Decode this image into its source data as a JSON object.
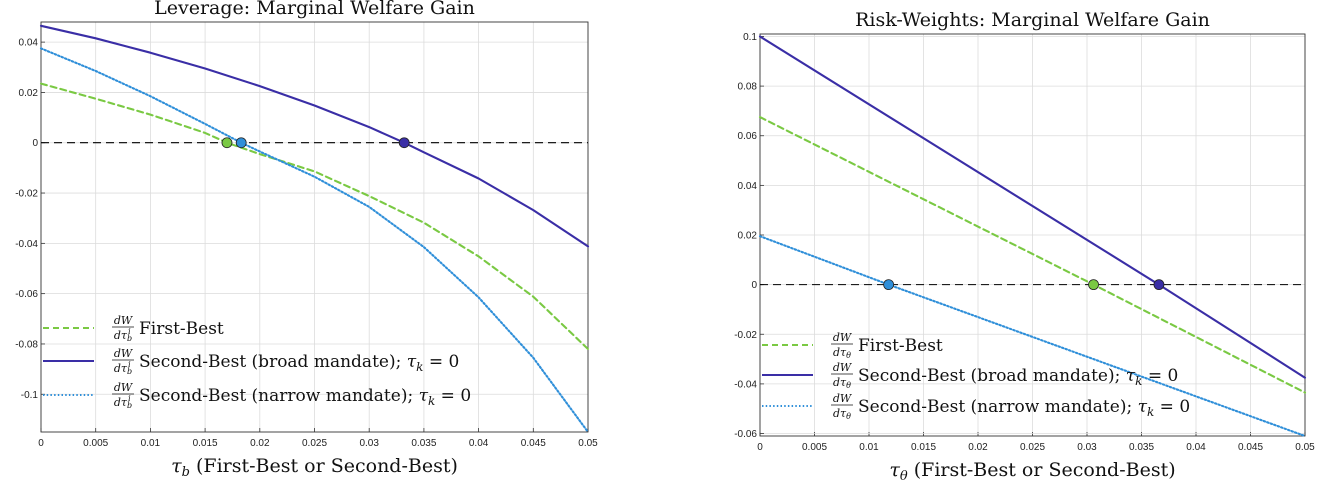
{
  "chart_data": [
    {
      "type": "line",
      "title": "Leverage: Marginal Welfare Gain",
      "xlabel_symbol": "τ",
      "xlabel_sub": "b",
      "xlabel_rest": " (First-Best or Second-Best)",
      "xlim": [
        0,
        0.05
      ],
      "ylim": [
        -0.115,
        0.048
      ],
      "xticks": [
        0,
        0.005,
        0.01,
        0.015,
        0.02,
        0.025,
        0.03,
        0.035,
        0.04,
        0.045,
        0.05
      ],
      "xtick_labels": [
        "0",
        "0.005",
        "0.01",
        "0.015",
        "0.02",
        "0.025",
        "0.03",
        "0.035",
        "0.04",
        "0.045",
        "0.05"
      ],
      "yticks": [
        0.04,
        0.02,
        0,
        -0.02,
        -0.04,
        -0.06,
        -0.08,
        -0.1
      ],
      "ytick_labels": [
        "0.04",
        "0.02",
        "0",
        "-0.02",
        "-0.04",
        "-0.06",
        "-0.08",
        "-0.1"
      ],
      "grid": true,
      "legend_position": "bottom-left",
      "zero_line": true,
      "deriv_num": "dW",
      "deriv_den": "dτ",
      "deriv_den_sub": "b",
      "deriv_den_sup": "i",
      "series": [
        {
          "name": "First-Best",
          "style": "dashed",
          "color": "#7ac943",
          "x": [
            0,
            0.005,
            0.01,
            0.015,
            0.017,
            0.02,
            0.025,
            0.03,
            0.035,
            0.04,
            0.045,
            0.05
          ],
          "y": [
            0.0235,
            0.0175,
            0.0112,
            0.0039,
            0.0,
            -0.0045,
            -0.0114,
            -0.0212,
            -0.0318,
            -0.0452,
            -0.0612,
            -0.082
          ],
          "marker": {
            "x": 0.017,
            "y": 0
          }
        },
        {
          "name": "Second-Best (broad mandate); τ_k = 0",
          "style": "solid",
          "color": "#3a2ea6",
          "x": [
            0,
            0.005,
            0.01,
            0.015,
            0.02,
            0.025,
            0.03,
            0.0332,
            0.035,
            0.04,
            0.045,
            0.05
          ],
          "y": [
            0.0465,
            0.0415,
            0.0358,
            0.0295,
            0.0225,
            0.0148,
            0.0062,
            0.0,
            -0.0038,
            -0.0142,
            -0.0268,
            -0.0412
          ],
          "marker": {
            "x": 0.0332,
            "y": 0
          }
        },
        {
          "name": "Second-Best (narrow mandate); τ_k = 0",
          "style": "dotted",
          "color": "#2f8fd9",
          "x": [
            0,
            0.005,
            0.01,
            0.015,
            0.0183,
            0.02,
            0.025,
            0.03,
            0.035,
            0.04,
            0.045,
            0.05
          ],
          "y": [
            0.0375,
            0.0285,
            0.0185,
            0.0075,
            0.0,
            -0.0035,
            -0.0135,
            -0.0255,
            -0.0415,
            -0.0615,
            -0.0855,
            -0.115
          ],
          "marker": {
            "x": 0.0183,
            "y": 0
          }
        }
      ]
    },
    {
      "type": "line",
      "title": "Risk-Weights: Marginal Welfare Gain",
      "xlabel_symbol": "τ",
      "xlabel_sub": "θ",
      "xlabel_rest": " (First-Best or Second-Best)",
      "xlim": [
        0,
        0.05
      ],
      "ylim": [
        -0.061,
        0.101
      ],
      "xticks": [
        0,
        0.005,
        0.01,
        0.015,
        0.02,
        0.025,
        0.03,
        0.035,
        0.04,
        0.045,
        0.05
      ],
      "xtick_labels": [
        "0",
        "0.005",
        "0.01",
        "0.015",
        "0.02",
        "0.025",
        "0.03",
        "0.035",
        "0.04",
        "0.045",
        "0.05"
      ],
      "yticks": [
        0.1,
        0.08,
        0.06,
        0.04,
        0.02,
        0,
        -0.02,
        -0.04,
        -0.06
      ],
      "ytick_labels": [
        "0.1",
        "0.08",
        "0.06",
        "0.04",
        "0.02",
        "0",
        "-0.02",
        "-0.04",
        "-0.06"
      ],
      "grid": true,
      "legend_position": "bottom-left",
      "zero_line": true,
      "deriv_num": "dW",
      "deriv_den": "dτ",
      "deriv_den_sub": "θ",
      "deriv_den_sup": "",
      "series": [
        {
          "name": "First-Best",
          "style": "dashed",
          "color": "#7ac943",
          "x": [
            0,
            0.0306,
            0.05
          ],
          "y": [
            0.0675,
            0.0,
            -0.0435
          ],
          "marker": {
            "x": 0.0306,
            "y": 0
          }
        },
        {
          "name": "Second-Best (broad mandate); τ_k = 0",
          "style": "solid",
          "color": "#3a2ea6",
          "x": [
            0,
            0.0366,
            0.05
          ],
          "y": [
            0.1,
            0.0,
            -0.0375
          ],
          "marker": {
            "x": 0.0366,
            "y": 0
          }
        },
        {
          "name": "Second-Best (narrow mandate); τ_k = 0",
          "style": "dotted",
          "color": "#2f8fd9",
          "x": [
            0,
            0.0118,
            0.05
          ],
          "y": [
            0.0195,
            0.0,
            -0.061
          ],
          "marker": {
            "x": 0.0118,
            "y": 0
          }
        }
      ]
    }
  ],
  "legend": {
    "first_best": "First-Best",
    "broad": "Second-Best (broad mandate); ",
    "narrow": "Second-Best (narrow mandate); ",
    "tau_k": "τ",
    "tau_k_sub": "k",
    "tau_k_rest": " = 0"
  }
}
